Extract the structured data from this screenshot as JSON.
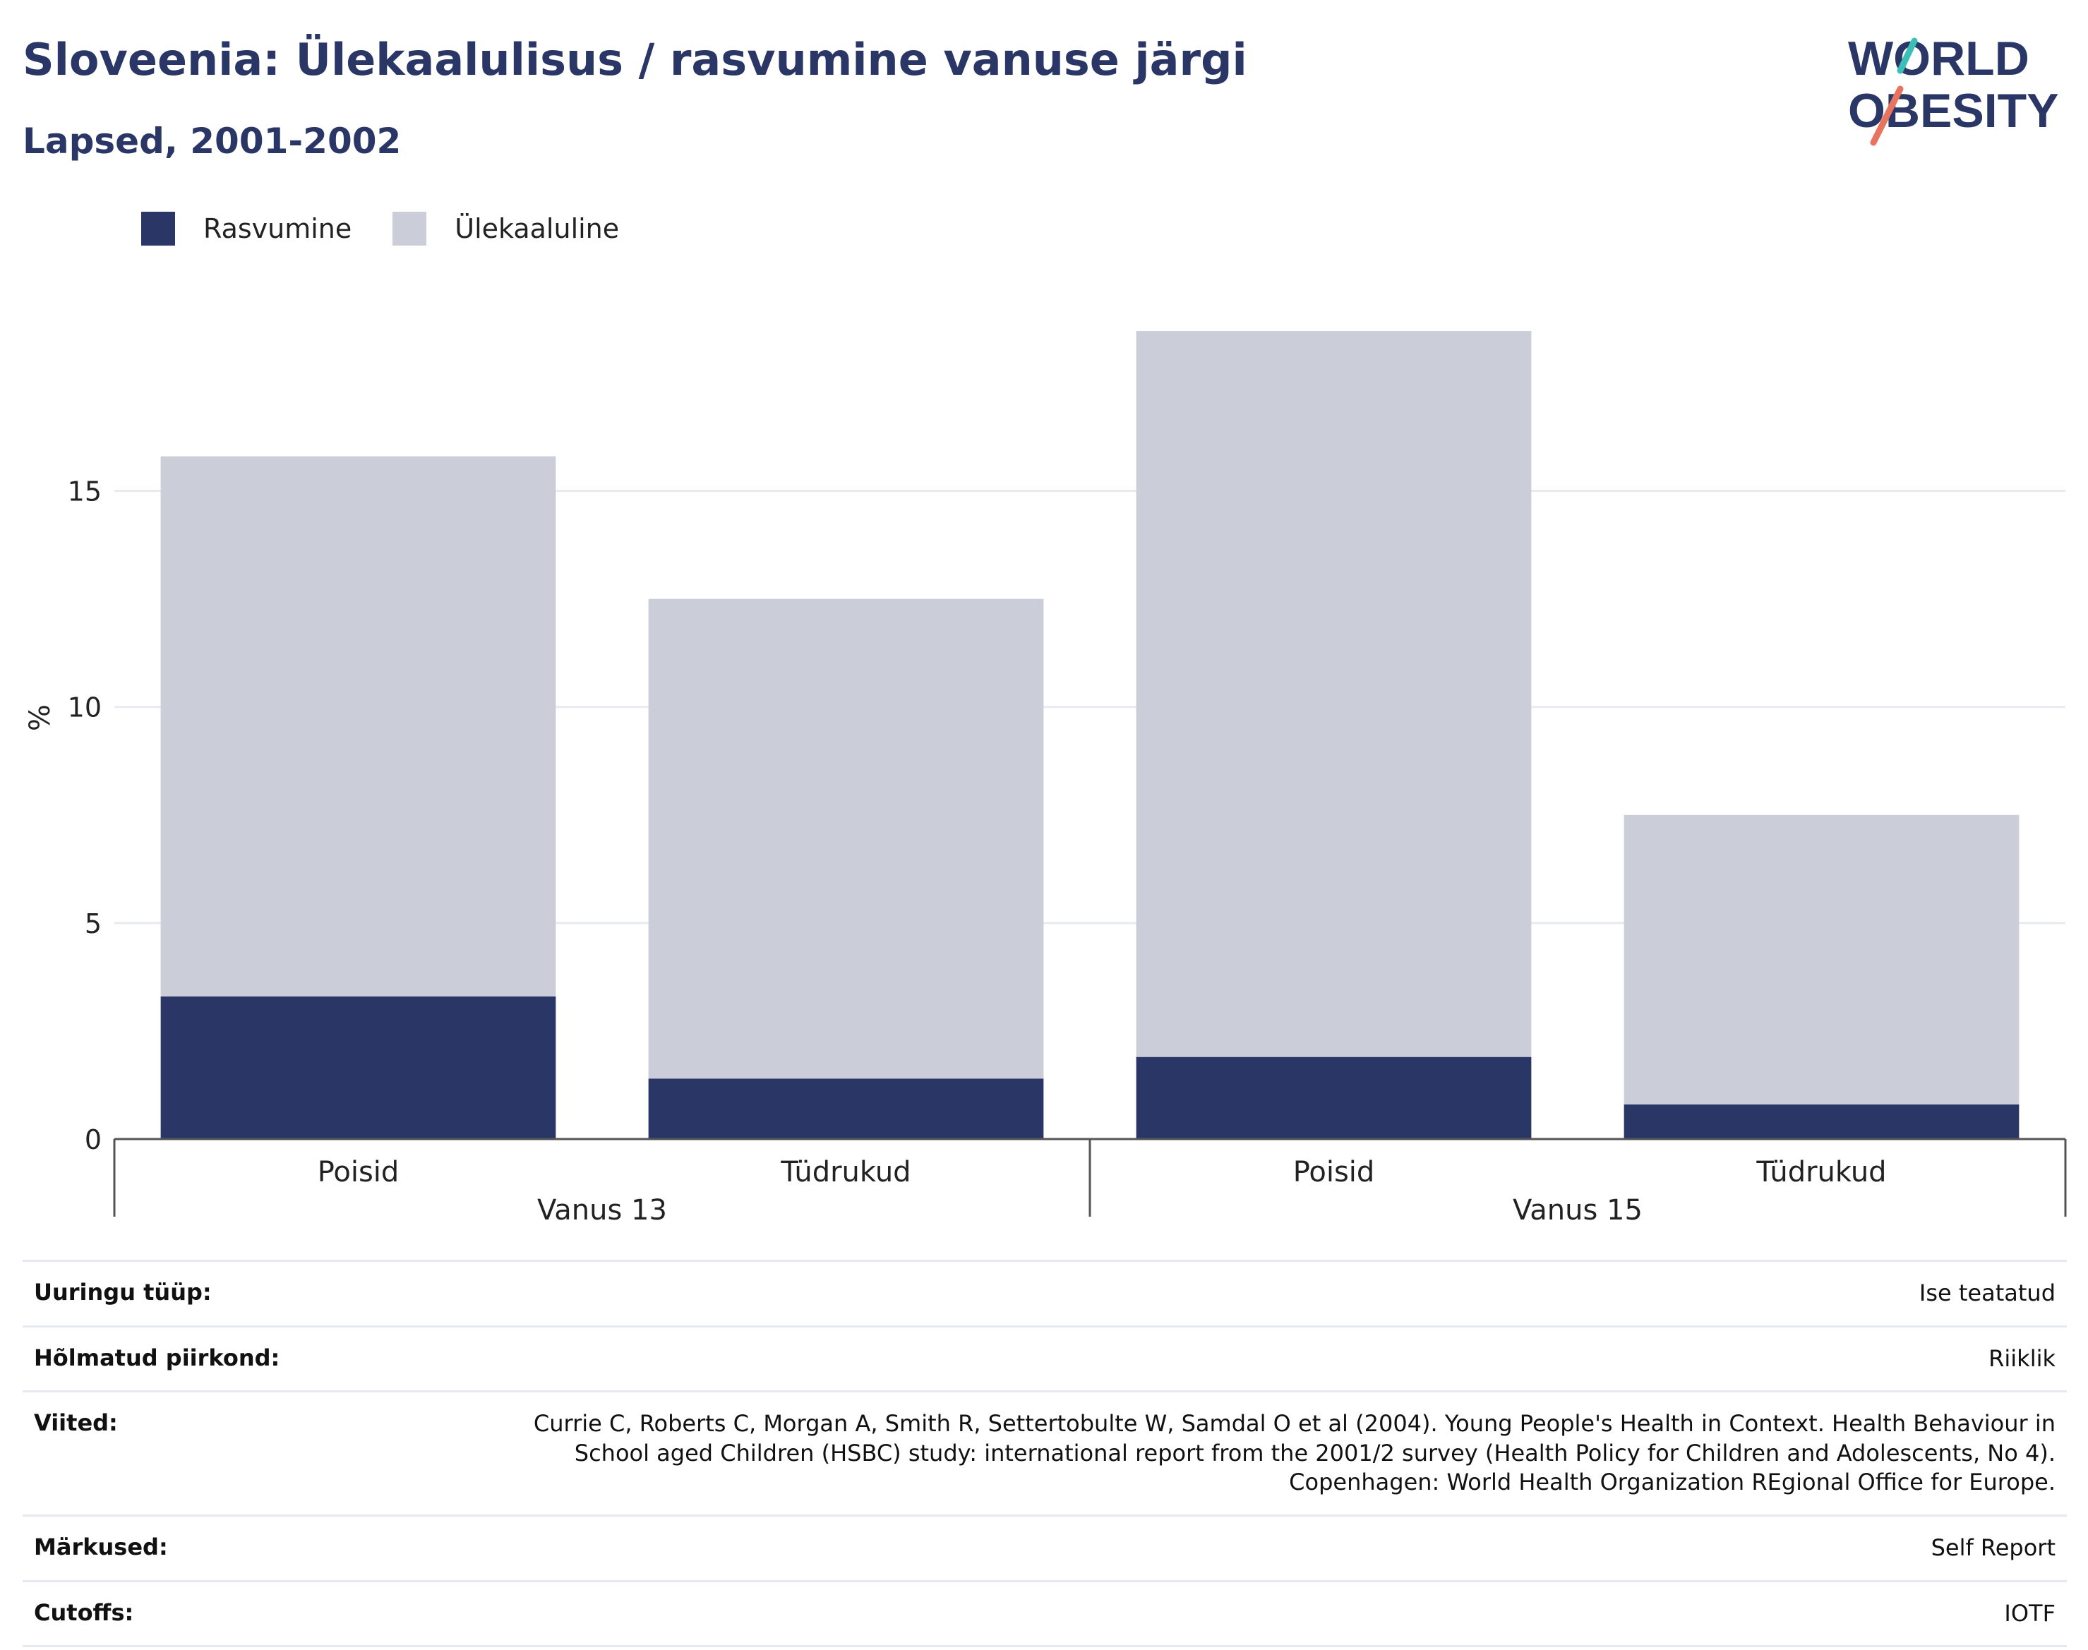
{
  "title": "Sloveenia: Ülekaalulisus / rasvumine vanuse järgi",
  "subtitle": "Lapsed, 2001-2002",
  "logo": {
    "line1": "WORLD",
    "line2": "OBESITY"
  },
  "colors": {
    "obesity": "#2a3665",
    "overweight": "#cbcdd9",
    "title": "#2a3665",
    "grid": "#e8eaf0",
    "axis": "#555555",
    "logo_teal": "#3bbfb8",
    "logo_coral": "#e8735f"
  },
  "chart_data": {
    "type": "bar",
    "stacked": true,
    "ylabel": "%",
    "ylim": [
      0,
      19.5
    ],
    "yticks": [
      0,
      5,
      10,
      15
    ],
    "grid": true,
    "legend_position": "top-left",
    "groups": [
      {
        "label": "Vanus 13",
        "categories": [
          "Poisid",
          "Tüdrukud"
        ]
      },
      {
        "label": "Vanus 15",
        "categories": [
          "Poisid",
          "Tüdrukud"
        ]
      }
    ],
    "categories": [
      "Poisid",
      "Tüdrukud",
      "Poisid",
      "Tüdrukud"
    ],
    "series": [
      {
        "name": "Rasvumine",
        "values": [
          3.3,
          1.4,
          1.9,
          0.8
        ]
      },
      {
        "name": "Ülekaaluline",
        "values": [
          12.5,
          11.1,
          16.8,
          6.7
        ]
      }
    ]
  },
  "info": [
    {
      "label": "Uuringu tüüp:",
      "value": [
        "Ise teatatud"
      ]
    },
    {
      "label": "Hõlmatud piirkond:",
      "value": [
        "Riiklik"
      ]
    },
    {
      "label": "Viited:",
      "value": [
        "Currie C, Roberts C, Morgan A, Smith R, Settertobulte W, Samdal O et al (2004). Young People's Health in Context. Health Behaviour in",
        "School aged Children (HSBC) study: international report from the 2001/2 survey (Health Policy for Children and Adolescents, No 4).",
        "Copenhagen: World Health Organization REgional Office for Europe."
      ]
    },
    {
      "label": "Märkused:",
      "value": [
        "Self Report"
      ]
    },
    {
      "label": "Cutoffs:",
      "value": [
        "IOTF"
      ]
    }
  ]
}
